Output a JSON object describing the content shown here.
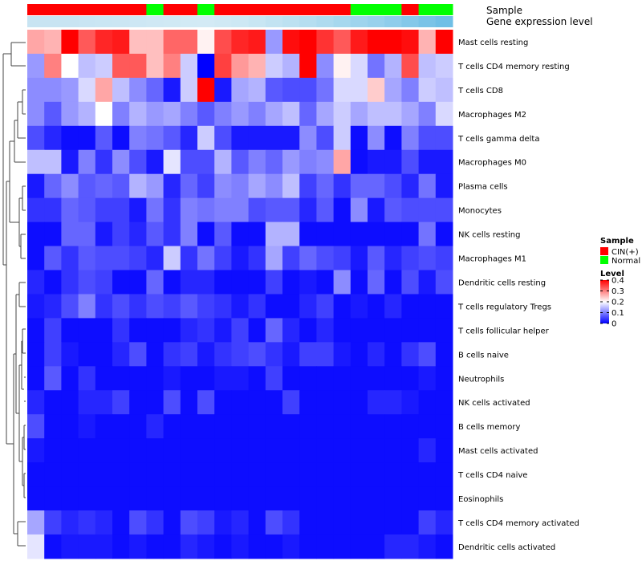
{
  "chart_data": {
    "type": "heatmap",
    "annotation_labels": {
      "sample": "Sample",
      "expression": "Gene expression level"
    },
    "sample_groups": [
      "CIN(+)",
      "CIN(+)",
      "CIN(+)",
      "CIN(+)",
      "CIN(+)",
      "CIN(+)",
      "CIN(+)",
      "Normal",
      "CIN(+)",
      "CIN(+)",
      "Normal",
      "CIN(+)",
      "CIN(+)",
      "CIN(+)",
      "CIN(+)",
      "CIN(+)",
      "CIN(+)",
      "CIN(+)",
      "CIN(+)",
      "Normal",
      "Normal",
      "Normal",
      "CIN(+)",
      "Normal",
      "Normal"
    ],
    "rows": [
      "Mast cells resting",
      "T cells CD4 memory resting",
      "T cells CD8",
      "Macrophages M2",
      "T cells gamma delta",
      "Macrophages M0",
      "Plasma cells",
      "Monocytes",
      "NK cells resting",
      "Macrophages M1",
      "Dendritic cells resting",
      "T cells regulatory  Tregs",
      "T cells follicular helper",
      "B cells naive",
      "Neutrophils",
      "NK cells activated",
      "B cells memory",
      "Mast cells activated",
      "T cells CD4 naive",
      "Eosinophils",
      "T cells CD4 memory activated",
      "Dendritic cells activated"
    ],
    "values": [
      [
        0.27,
        0.26,
        0.4,
        0.33,
        0.37,
        0.38,
        0.25,
        0.25,
        0.32,
        0.32,
        0.21,
        0.34,
        0.37,
        0.38,
        0.12,
        0.39,
        0.4,
        0.36,
        0.33,
        0.38,
        0.4,
        0.4,
        0.39,
        0.26,
        0.4
      ],
      [
        0.12,
        0.3,
        0.2,
        0.15,
        0.16,
        0.33,
        0.33,
        0.25,
        0.3,
        0.16,
        0.0,
        0.35,
        0.28,
        0.26,
        0.16,
        0.14,
        0.4,
        0.11,
        0.21,
        0.17,
        0.09,
        0.14,
        0.34,
        0.15,
        0.16
      ],
      [
        0.11,
        0.11,
        0.12,
        0.17,
        0.27,
        0.15,
        0.11,
        0.08,
        0.02,
        0.16,
        0.4,
        0.02,
        0.13,
        0.14,
        0.07,
        0.06,
        0.06,
        0.09,
        0.17,
        0.17,
        0.24,
        0.13,
        0.1,
        0.16,
        0.15
      ],
      [
        0.11,
        0.07,
        0.12,
        0.14,
        0.2,
        0.1,
        0.14,
        0.12,
        0.13,
        0.1,
        0.07,
        0.1,
        0.12,
        0.1,
        0.13,
        0.15,
        0.08,
        0.13,
        0.16,
        0.13,
        0.15,
        0.15,
        0.13,
        0.1,
        0.17
      ],
      [
        0.06,
        0.03,
        0.01,
        0.01,
        0.07,
        0.01,
        0.1,
        0.09,
        0.07,
        0.03,
        0.16,
        0.06,
        0.02,
        0.02,
        0.02,
        0.02,
        0.11,
        0.06,
        0.16,
        0.01,
        0.11,
        0.01,
        0.1,
        0.06,
        0.06
      ],
      [
        0.15,
        0.15,
        0.02,
        0.1,
        0.04,
        0.11,
        0.06,
        0.02,
        0.18,
        0.06,
        0.06,
        0.14,
        0.07,
        0.1,
        0.08,
        0.12,
        0.1,
        0.11,
        0.27,
        0.01,
        0.02,
        0.02,
        0.06,
        0.02,
        0.02
      ],
      [
        0.02,
        0.08,
        0.11,
        0.07,
        0.08,
        0.07,
        0.14,
        0.12,
        0.03,
        0.08,
        0.05,
        0.11,
        0.1,
        0.13,
        0.11,
        0.15,
        0.05,
        0.08,
        0.04,
        0.08,
        0.08,
        0.06,
        0.03,
        0.09,
        0.02
      ],
      [
        0.04,
        0.04,
        0.08,
        0.07,
        0.05,
        0.05,
        0.02,
        0.09,
        0.04,
        0.1,
        0.09,
        0.1,
        0.1,
        0.06,
        0.07,
        0.07,
        0.03,
        0.07,
        0.01,
        0.11,
        0.02,
        0.07,
        0.06,
        0.06,
        0.06
      ],
      [
        0.01,
        0.01,
        0.08,
        0.08,
        0.02,
        0.05,
        0.03,
        0.07,
        0.04,
        0.1,
        0.01,
        0.07,
        0.01,
        0.01,
        0.14,
        0.14,
        0.01,
        0.01,
        0.01,
        0.01,
        0.01,
        0.01,
        0.01,
        0.09,
        0.01
      ],
      [
        0.01,
        0.07,
        0.04,
        0.07,
        0.06,
        0.06,
        0.05,
        0.03,
        0.16,
        0.04,
        0.09,
        0.05,
        0.02,
        0.04,
        0.13,
        0.05,
        0.08,
        0.06,
        0.05,
        0.02,
        0.07,
        0.03,
        0.05,
        0.06,
        0.05
      ],
      [
        0.03,
        0.01,
        0.04,
        0.06,
        0.05,
        0.01,
        0.01,
        0.08,
        0.01,
        0.03,
        0.03,
        0.01,
        0.01,
        0.01,
        0.05,
        0.01,
        0.02,
        0.01,
        0.11,
        0.01,
        0.08,
        0.01,
        0.06,
        0.02,
        0.06
      ],
      [
        0.02,
        0.03,
        0.06,
        0.1,
        0.04,
        0.06,
        0.04,
        0.06,
        0.05,
        0.07,
        0.05,
        0.04,
        0.02,
        0.04,
        0.01,
        0.01,
        0.03,
        0.05,
        0.01,
        0.02,
        0.01,
        0.03,
        0.01,
        0.01,
        0.01
      ],
      [
        0.01,
        0.05,
        0.01,
        0.01,
        0.01,
        0.04,
        0.01,
        0.01,
        0.01,
        0.03,
        0.04,
        0.02,
        0.05,
        0.01,
        0.08,
        0.03,
        0.01,
        0.03,
        0.01,
        0.01,
        0.01,
        0.01,
        0.01,
        0.01,
        0.01
      ],
      [
        0.01,
        0.05,
        0.02,
        0.01,
        0.01,
        0.03,
        0.06,
        0.01,
        0.04,
        0.05,
        0.02,
        0.04,
        0.05,
        0.06,
        0.04,
        0.02,
        0.05,
        0.05,
        0.02,
        0.01,
        0.03,
        0.01,
        0.04,
        0.06,
        0.01
      ],
      [
        0.01,
        0.07,
        0.01,
        0.04,
        0.01,
        0.01,
        0.01,
        0.01,
        0.02,
        0.01,
        0.01,
        0.02,
        0.02,
        0.01,
        0.05,
        0.01,
        0.01,
        0.01,
        0.01,
        0.01,
        0.01,
        0.01,
        0.01,
        0.02,
        0.01
      ],
      [
        0.03,
        0.01,
        0.01,
        0.03,
        0.03,
        0.05,
        0.01,
        0.01,
        0.06,
        0.01,
        0.06,
        0.01,
        0.01,
        0.01,
        0.01,
        0.05,
        0.01,
        0.01,
        0.01,
        0.01,
        0.03,
        0.03,
        0.02,
        0.01,
        0.01
      ],
      [
        0.06,
        0.01,
        0.01,
        0.02,
        0.01,
        0.01,
        0.01,
        0.03,
        0.01,
        0.01,
        0.01,
        0.01,
        0.01,
        0.01,
        0.01,
        0.01,
        0.01,
        0.01,
        0.01,
        0.01,
        0.01,
        0.01,
        0.01,
        0.01,
        0.01
      ],
      [
        0.02,
        0.01,
        0.01,
        0.01,
        0.01,
        0.01,
        0.01,
        0.01,
        0.01,
        0.01,
        0.01,
        0.01,
        0.01,
        0.01,
        0.01,
        0.01,
        0.01,
        0.01,
        0.01,
        0.01,
        0.01,
        0.01,
        0.01,
        0.03,
        0.01
      ],
      [
        0.01,
        0.01,
        0.01,
        0.01,
        0.01,
        0.01,
        0.01,
        0.01,
        0.01,
        0.01,
        0.01,
        0.01,
        0.01,
        0.01,
        0.01,
        0.01,
        0.01,
        0.01,
        0.01,
        0.01,
        0.01,
        0.01,
        0.01,
        0.01,
        0.01
      ],
      [
        0.01,
        0.01,
        0.01,
        0.01,
        0.01,
        0.01,
        0.01,
        0.01,
        0.01,
        0.01,
        0.01,
        0.01,
        0.01,
        0.01,
        0.01,
        0.01,
        0.01,
        0.01,
        0.01,
        0.01,
        0.01,
        0.01,
        0.01,
        0.01,
        0.01
      ],
      [
        0.13,
        0.05,
        0.03,
        0.04,
        0.03,
        0.01,
        0.06,
        0.04,
        0.01,
        0.06,
        0.05,
        0.02,
        0.03,
        0.01,
        0.06,
        0.04,
        0.01,
        0.01,
        0.01,
        0.01,
        0.01,
        0.01,
        0.01,
        0.05,
        0.03
      ],
      [
        0.18,
        0.01,
        0.02,
        0.02,
        0.02,
        0.01,
        0.02,
        0.01,
        0.01,
        0.03,
        0.02,
        0.01,
        0.02,
        0.01,
        0.01,
        0.02,
        0.01,
        0.01,
        0.01,
        0.01,
        0.01,
        0.03,
        0.03,
        0.02,
        0.01
      ]
    ],
    "expression_level_colors": [
      "#c8e4f2",
      "#c8e4f2",
      "#c8e4f2",
      "#c9e5f3",
      "#cae6f3",
      "#cbe6f3",
      "#cde7f4",
      "#cfe8f4",
      "#d0e9f4",
      "#d2eaf5",
      "#d3eaf5",
      "#d0e9f4",
      "#cde8f4",
      "#c8e6f3",
      "#c2e3f2",
      "#bce1f1",
      "#b5def0",
      "#aedbef",
      "#a6d8ee",
      "#9fd4ed",
      "#98d1ec",
      "#8fcdeb",
      "#84c8e9",
      "#79c3e7",
      "#6fbfe6"
    ],
    "legend": {
      "sample_title": "Sample",
      "sample_entries": [
        {
          "label": "CIN(+)",
          "color": "#ff0000"
        },
        {
          "label": "Normal",
          "color": "#00ff00"
        }
      ],
      "level_title": "Level",
      "level_ticks": [
        "0.4",
        "0.3",
        "0.2",
        "0.1",
        "0"
      ],
      "range": [
        0,
        0.4
      ]
    },
    "colors": {
      "low": "#0000ff",
      "mid": "#ffffff",
      "high": "#ff0000"
    }
  }
}
